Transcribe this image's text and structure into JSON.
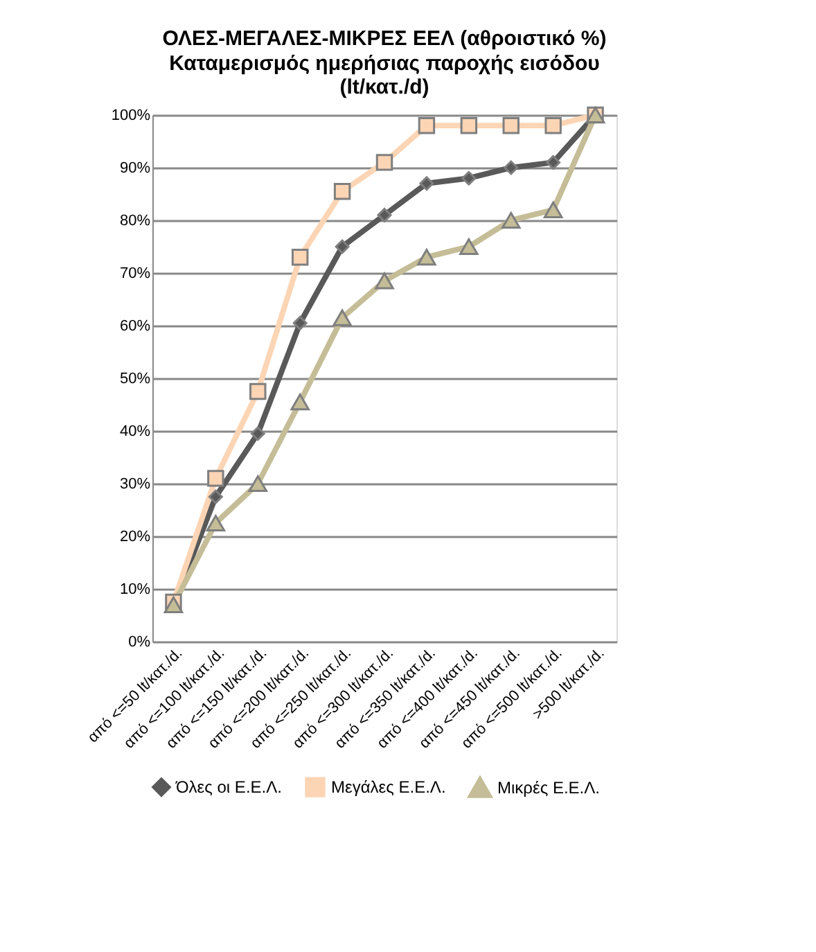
{
  "chart_data": {
    "type": "line",
    "title": "ΟΛΕΣ-ΜΕΓΑΛΕΣ-ΜΙΚΡΕΣ ΕΕΛ (αθροιστικό %)",
    "subtitle": "Καταμερισμός ημερήσιας παροχής εισόδου (lt/κατ./d)",
    "categories": [
      "από <=50 lt/κατ./d.",
      "από <=100 lt/κατ./d.",
      "από <=150 lt/κατ./d.",
      "από <=200 lt/κατ./d.",
      "από <=250 lt/κατ./d.",
      "από <=300 lt/κατ./d.",
      "από <=350 lt/κατ./d.",
      "από <=400 lt/κατ./d.",
      "από <=450 lt/κατ./d.",
      "από <=500 lt/κατ./d.",
      ">500 lt/κατ./d."
    ],
    "series": [
      {
        "name": "Όλες οι Ε.Ε.Λ.",
        "color": "#595959",
        "marker": "diamond",
        "values": [
          7,
          27.5,
          39.5,
          60.5,
          75,
          81,
          87,
          88,
          90,
          91,
          100
        ]
      },
      {
        "name": "Μεγάλες Ε.Ε.Λ.",
        "color": "#fcd5b5",
        "marker": "square",
        "values": [
          7.5,
          31,
          47.5,
          73,
          85.5,
          91,
          98,
          98,
          98,
          98,
          100
        ]
      },
      {
        "name": "Μικρές Ε.Ε.Λ.",
        "color": "#c4bd97",
        "marker": "triangle",
        "values": [
          7,
          22.5,
          30,
          45.5,
          61.5,
          68.5,
          73,
          75,
          80,
          82,
          100
        ]
      }
    ],
    "ylim": [
      0,
      100
    ],
    "yticks": [
      {
        "value": 0,
        "label": "0%"
      },
      {
        "value": 10,
        "label": "10%"
      },
      {
        "value": 20,
        "label": "20%"
      },
      {
        "value": 30,
        "label": "30%"
      },
      {
        "value": 40,
        "label": "40%"
      },
      {
        "value": 50,
        "label": "50%"
      },
      {
        "value": 60,
        "label": "60%"
      },
      {
        "value": 70,
        "label": "70%"
      },
      {
        "value": 80,
        "label": "80%"
      },
      {
        "value": 90,
        "label": "90%"
      },
      {
        "value": 100,
        "label": "100%"
      }
    ],
    "grid": "y",
    "legend": "bottom"
  }
}
